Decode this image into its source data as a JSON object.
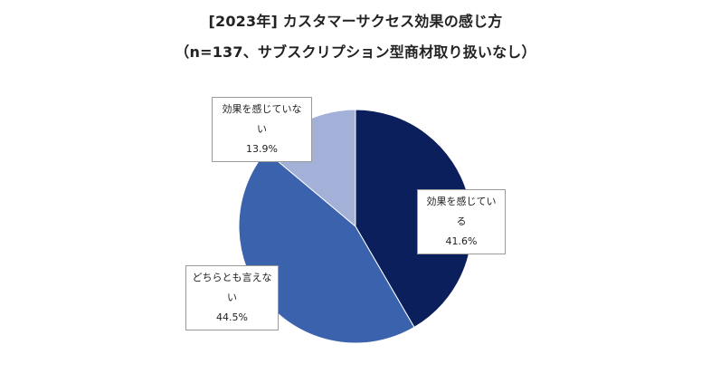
{
  "chart_data": {
    "type": "pie",
    "title": "[2023年] カスタマーサクセス効果の感じ方",
    "subtitle": "（n=137、サブスクリプション型商材取り扱いなし）",
    "slices": [
      {
        "label": "効果を感じている",
        "value": 41.6,
        "display": "41.6%",
        "color": "#0b1f5c"
      },
      {
        "label": "どちらとも言えない",
        "value": 44.5,
        "display": "44.5%",
        "color": "#3b63ad"
      },
      {
        "label": "効果を感じていない",
        "value": 13.9,
        "display": "13.9%",
        "color": "#a3b1d9"
      }
    ],
    "start_angle_deg": 0,
    "direction": "clockwise",
    "legend": "none"
  }
}
